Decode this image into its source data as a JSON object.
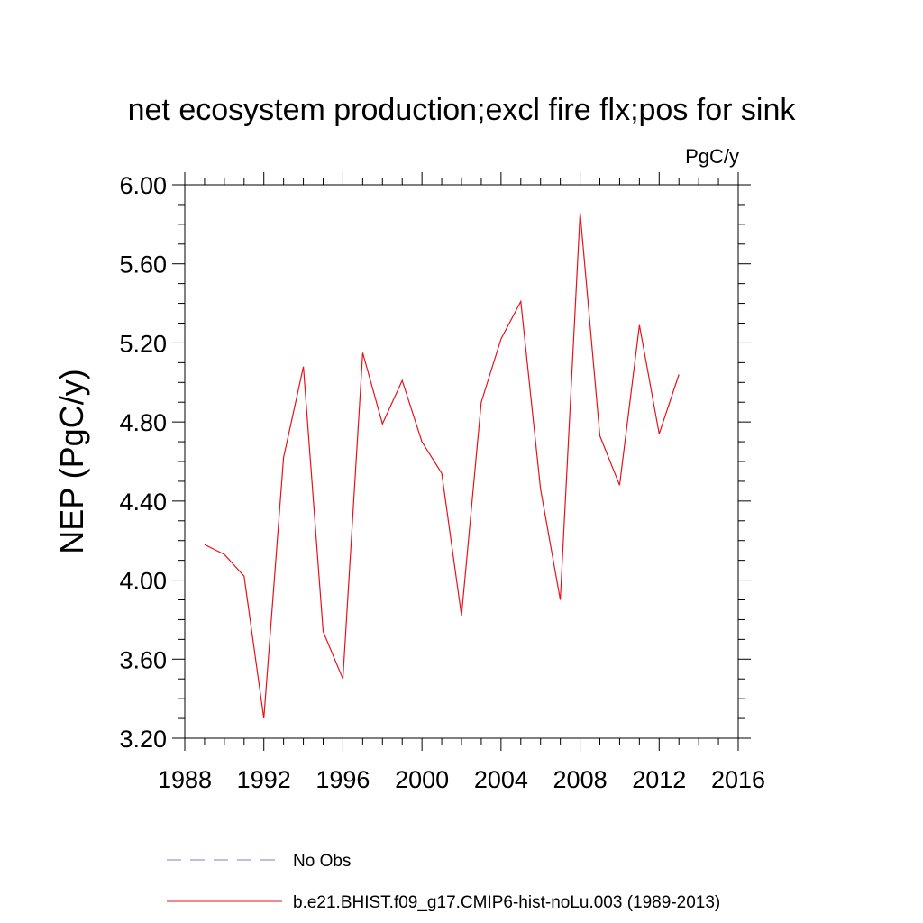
{
  "chart_data": {
    "type": "line",
    "title": "net ecosystem production;excl fire flx;pos for sink",
    "units": "PgC/y",
    "ylabel": "NEP  (PgC/y)",
    "xlabel": "",
    "xlim": [
      1988,
      2016
    ],
    "ylim": [
      3.2,
      6.0
    ],
    "x_ticks": [
      1988,
      1992,
      1996,
      2000,
      2004,
      2008,
      2012,
      2016
    ],
    "y_ticks": [
      3.2,
      3.6,
      4.0,
      4.4,
      4.8,
      5.2,
      5.6,
      6.0
    ],
    "x_tick_labels": [
      "1988",
      "1992",
      "1996",
      "2000",
      "2004",
      "2008",
      "2012",
      "2016"
    ],
    "y_tick_labels": [
      "3.20",
      "3.60",
      "4.00",
      "4.40",
      "4.80",
      "5.20",
      "5.60",
      "6.00"
    ],
    "grid": false,
    "legend_position": "bottom",
    "series": [
      {
        "name": "No Obs",
        "color": "#7b7bd0",
        "style": "dashed",
        "x": [],
        "values": []
      },
      {
        "name": "b.e21.BHIST.f09_g17.CMIP6-hist-noLu.003 (1989-2013)",
        "color": "#e8101a",
        "style": "solid",
        "x": [
          1989,
          1990,
          1991,
          1992,
          1993,
          1994,
          1995,
          1996,
          1997,
          1998,
          1999,
          2000,
          2001,
          2002,
          2003,
          2004,
          2005,
          2006,
          2007,
          2008,
          2009,
          2010,
          2011,
          2012,
          2013
        ],
        "values": [
          4.18,
          4.13,
          4.02,
          3.3,
          4.62,
          5.08,
          3.74,
          3.5,
          5.15,
          4.79,
          5.01,
          4.7,
          4.54,
          3.82,
          4.9,
          5.22,
          5.41,
          4.46,
          3.9,
          5.86,
          4.73,
          4.48,
          5.29,
          4.74,
          5.04
        ]
      }
    ]
  }
}
